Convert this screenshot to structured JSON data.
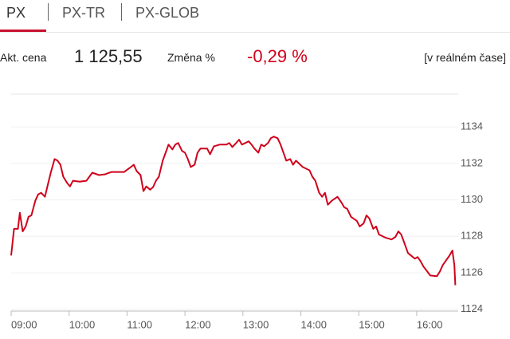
{
  "tabs": [
    "PX",
    "PX-TR",
    "PX-GLOB"
  ],
  "quote": {
    "price_label": "Akt. cena",
    "price": "1 125,55",
    "change_label": "Změna %",
    "change": "-0,29 %",
    "realtime": "[v reálném čase]"
  },
  "chart_data": {
    "type": "line",
    "color": "#d0021b",
    "grid": true,
    "x": [
      "09:00",
      "09:03",
      "09:07",
      "09:09",
      "09:12",
      "09:15",
      "09:18",
      "09:21",
      "09:25",
      "09:28",
      "09:31",
      "09:35",
      "09:38",
      "09:41",
      "09:45",
      "09:48",
      "09:51",
      "09:54",
      "09:58",
      "10:01",
      "10:04",
      "10:11",
      "10:18",
      "10:24",
      "10:31",
      "10:37",
      "10:44",
      "10:51",
      "10:57",
      "11:04",
      "11:07",
      "11:10",
      "11:14",
      "11:17",
      "11:20",
      "11:24",
      "11:27",
      "11:30",
      "11:33",
      "11:37",
      "11:40",
      "11:43",
      "11:47",
      "11:50",
      "11:53",
      "11:57",
      "12:00",
      "12:03",
      "12:06",
      "12:10",
      "12:13",
      "12:16",
      "12:23",
      "12:26",
      "12:30",
      "12:36",
      "12:43",
      "12:46",
      "12:49",
      "12:53",
      "12:56",
      "12:59",
      "13:06",
      "13:09",
      "13:12",
      "13:16",
      "13:19",
      "13:22",
      "13:26",
      "13:29",
      "13:32",
      "13:36",
      "13:39",
      "13:42",
      "13:45",
      "13:49",
      "13:52",
      "13:55",
      "14:02",
      "14:09",
      "14:12",
      "14:15",
      "14:19",
      "14:22",
      "14:25",
      "14:28",
      "14:32",
      "14:38",
      "14:42",
      "14:45",
      "14:48",
      "14:52",
      "14:58",
      "15:01",
      "15:05",
      "15:08",
      "15:11",
      "15:15",
      "15:18",
      "15:21",
      "15:28",
      "15:34",
      "15:38",
      "15:41",
      "15:44",
      "15:48",
      "15:51",
      "15:58",
      "16:01",
      "16:04",
      "16:07",
      "16:11",
      "16:14",
      "16:21",
      "16:24",
      "16:27",
      "16:34",
      "16:37",
      "16:39",
      "16:40"
    ],
    "values": [
      1126.95,
      1128.41,
      1128.41,
      1129.29,
      1128.27,
      1128.54,
      1129.07,
      1129.15,
      1129.95,
      1130.3,
      1130.39,
      1130.17,
      1130.83,
      1131.49,
      1132.24,
      1132.15,
      1131.93,
      1131.27,
      1130.92,
      1130.74,
      1131.05,
      1131.0,
      1131.05,
      1131.49,
      1131.36,
      1131.4,
      1131.53,
      1131.53,
      1131.53,
      1131.8,
      1131.93,
      1131.58,
      1131.36,
      1130.48,
      1130.74,
      1130.56,
      1130.7,
      1131.05,
      1131.27,
      1132.15,
      1132.59,
      1133.03,
      1132.77,
      1133.03,
      1133.12,
      1132.68,
      1132.59,
      1132.24,
      1131.8,
      1131.93,
      1132.59,
      1132.81,
      1132.81,
      1132.5,
      1132.94,
      1133.03,
      1133.03,
      1133.12,
      1132.9,
      1133.12,
      1133.3,
      1133.03,
      1133.21,
      1133.03,
      1132.81,
      1132.59,
      1133.03,
      1132.94,
      1133.12,
      1133.38,
      1133.47,
      1133.38,
      1133.03,
      1132.59,
      1132.15,
      1132.24,
      1131.93,
      1132.15,
      1131.8,
      1131.62,
      1131.27,
      1131.05,
      1130.39,
      1130.17,
      1130.39,
      1129.73,
      1129.95,
      1130.17,
      1129.86,
      1129.59,
      1129.51,
      1129.07,
      1128.85,
      1128.54,
      1128.71,
      1129.15,
      1128.98,
      1128.41,
      1128.54,
      1128.1,
      1127.92,
      1127.83,
      1127.97,
      1128.27,
      1128.1,
      1127.52,
      1127.08,
      1126.78,
      1126.86,
      1126.64,
      1126.34,
      1126.07,
      1125.85,
      1125.81,
      1126.07,
      1126.42,
      1126.95,
      1127.22,
      1126.42,
      1125.32
    ],
    "xlim": [
      "09:00",
      "16:43"
    ],
    "xticks": [
      "09:00",
      "10:00",
      "11:00",
      "12:00",
      "13:00",
      "14:00",
      "15:00",
      "16:00"
    ],
    "ylim": [
      1123.9,
      1135.8
    ],
    "yticks": [
      1124,
      1126,
      1128,
      1130,
      1132,
      1134
    ]
  }
}
